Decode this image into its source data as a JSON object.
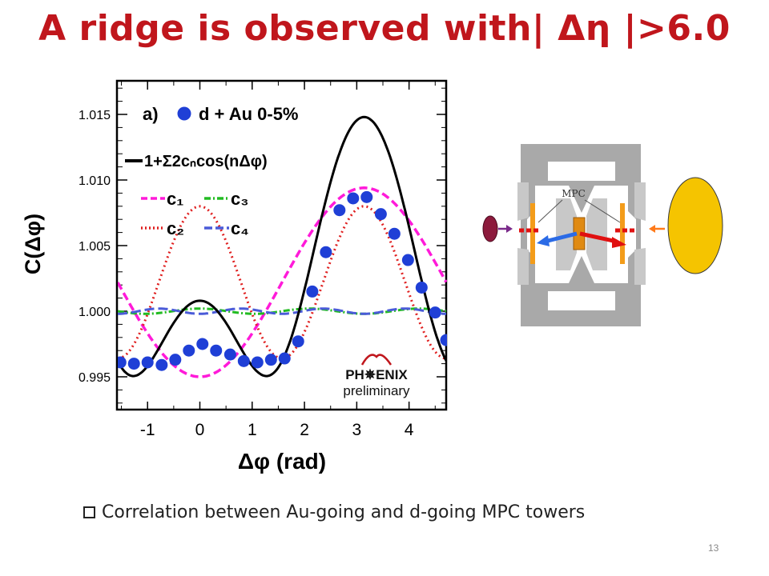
{
  "slide": {
    "title": "A ridge is observed with| Δη |>6.0",
    "bullet": "Correlation between Au-going and d-going MPC towers",
    "page_number": "13"
  },
  "chart_data": {
    "type": "scatter",
    "panel_label": "a)",
    "xlabel": "Δφ (rad)",
    "ylabel": "C(Δφ)",
    "xlim": [
      -1.57,
      4.71
    ],
    "ylim": [
      0.9925,
      1.0175
    ],
    "xticks": [
      -1,
      0,
      1,
      2,
      3,
      4
    ],
    "yticks": [
      0.995,
      1.0,
      1.005,
      1.01,
      1.015
    ],
    "ytick_labels": [
      "0.995",
      "1.000",
      "1.005",
      "1.010",
      "1.015"
    ],
    "grid": false,
    "legend": [
      {
        "label": "d + Au 0-5%",
        "kind": "marker",
        "color": "#1f3fd6"
      },
      {
        "label": "1+Σ2cₙcos(nΔφ)",
        "kind": "solid",
        "color": "#000000"
      },
      {
        "label": "c₁",
        "kind": "dash",
        "color": "#ff1ad9"
      },
      {
        "label": "c₃",
        "kind": "dashdot",
        "color": "#22bb22"
      },
      {
        "label": "c₂",
        "kind": "dot",
        "color": "#e02020"
      },
      {
        "label": "c₄",
        "kind": "longdash",
        "color": "#4a5bd8"
      }
    ],
    "series": [
      {
        "name": "d + Au 0-5%",
        "x": [
          -1.52,
          -1.26,
          -1.0,
          -0.73,
          -0.47,
          -0.21,
          0.05,
          0.31,
          0.58,
          0.84,
          1.1,
          1.36,
          1.62,
          1.88,
          2.15,
          2.41,
          2.67,
          2.93,
          3.19,
          3.46,
          3.72,
          3.98,
          4.24,
          4.5,
          4.71
        ],
        "y": [
          0.9961,
          0.996,
          0.9961,
          0.9959,
          0.9963,
          0.997,
          0.9975,
          0.997,
          0.9967,
          0.9962,
          0.9961,
          0.9963,
          0.9964,
          0.9977,
          1.0015,
          1.0045,
          1.0077,
          1.0086,
          1.0087,
          1.0074,
          1.0059,
          1.0039,
          1.0018,
          0.9999,
          0.9978
        ]
      }
    ],
    "fourier": {
      "c0": 1.0022,
      "c1": -0.0036,
      "c2": 0.0029,
      "c3": 0.0001,
      "c4": -0.0001
    },
    "annotations": {
      "logo_text": "PH✵ENIX",
      "preliminary": "preliminary"
    }
  },
  "diagram": {
    "detector_label": "MPC",
    "colors": {
      "gold_beam": "#f5c400",
      "d_beam": "#8c1a3c",
      "left_arrow": "#7a2a8a",
      "right_arrow": "#ff7a1a",
      "red_arrow": "#e01010",
      "blue_arrow": "#2b6be6",
      "frame": "#a9a9a9"
    }
  }
}
